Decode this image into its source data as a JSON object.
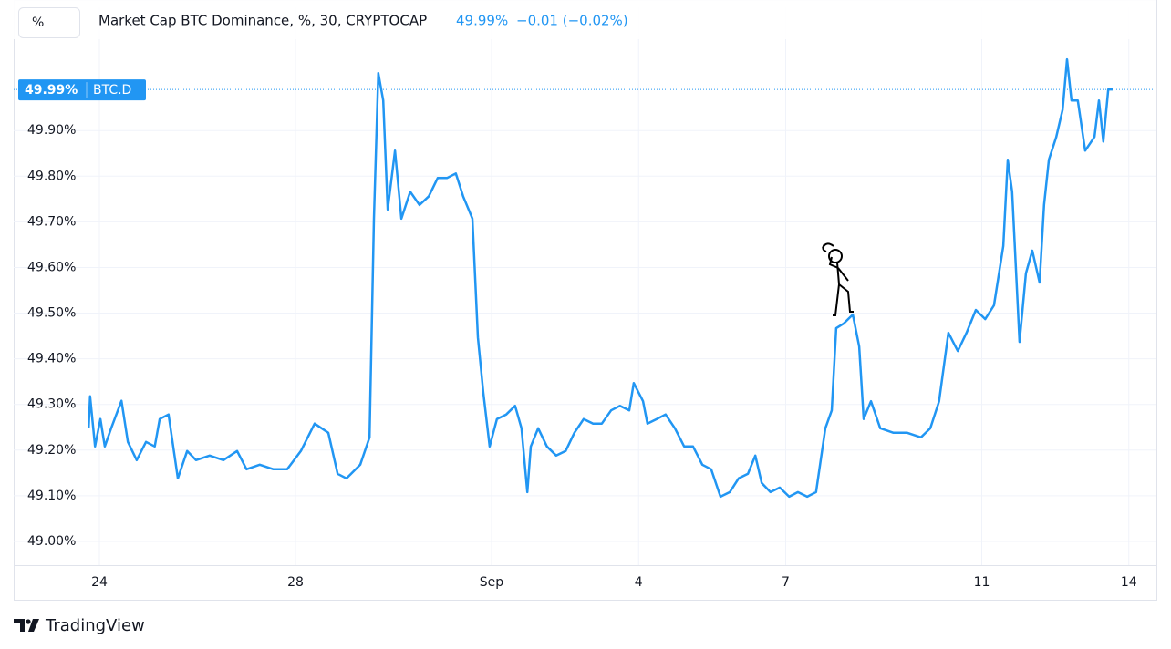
{
  "chart_data": {
    "type": "line",
    "title": "Market Cap BTC Dominance, %, 30, CRYPTOCAP",
    "unit_button": "%",
    "header_value": "49.99%",
    "header_change": "−0.01 (−0.02%)",
    "symbol": "BTC.D",
    "price_label": {
      "value": 49.99,
      "label": "49.99%"
    },
    "brand": "TradingView",
    "x": [
      23.78,
      23.81,
      23.91,
      24.02,
      24.11,
      24.24,
      24.45,
      24.58,
      24.76,
      24.95,
      25.13,
      25.23,
      25.41,
      25.6,
      25.79,
      25.97,
      26.25,
      26.53,
      26.81,
      27.0,
      27.27,
      27.55,
      27.83,
      28.11,
      28.39,
      28.67,
      28.86,
      29.04,
      29.32,
      29.51,
      29.6,
      29.69,
      29.79,
      29.88,
      30.03,
      30.16,
      30.34,
      30.53,
      30.72,
      30.9,
      31.09,
      31.27,
      31.42,
      31.61,
      31.72,
      31.83,
      31.96,
      32.11,
      32.3,
      32.48,
      32.61,
      32.73,
      32.8,
      32.95,
      33.13,
      33.32,
      33.51,
      33.69,
      33.88,
      34.07,
      34.25,
      34.44,
      34.62,
      34.81,
      34.9,
      35.09,
      35.18,
      35.37,
      35.55,
      35.74,
      35.93,
      36.11,
      36.3,
      36.48,
      36.67,
      36.86,
      37.04,
      37.23,
      37.38,
      37.51,
      37.69,
      37.88,
      38.07,
      38.25,
      38.44,
      38.62,
      38.81,
      38.94,
      39.03,
      39.18,
      39.37,
      39.5,
      39.59,
      39.74,
      39.93,
      40.2,
      40.48,
      40.76,
      40.95,
      41.13,
      41.32,
      41.51,
      41.69,
      41.88,
      42.07,
      42.25,
      42.44,
      42.53,
      42.62,
      42.77,
      42.9,
      43.03,
      43.18,
      43.27,
      43.37,
      43.52,
      43.65,
      43.74,
      43.83,
      43.96,
      44.11,
      44.3,
      44.39,
      44.48,
      44.58,
      44.67
    ],
    "series": [
      {
        "name": "BTC.D",
        "color": "#2196f3",
        "values": [
          49.248,
          49.318,
          49.208,
          49.268,
          49.208,
          49.248,
          49.308,
          49.218,
          49.178,
          49.218,
          49.208,
          49.268,
          49.278,
          49.138,
          49.198,
          49.178,
          49.188,
          49.178,
          49.198,
          49.158,
          49.168,
          49.158,
          49.158,
          49.198,
          49.258,
          49.238,
          49.148,
          49.138,
          49.168,
          49.228,
          49.707,
          50.026,
          49.966,
          49.727,
          49.856,
          49.707,
          49.766,
          49.737,
          49.756,
          49.796,
          49.796,
          49.806,
          49.756,
          49.707,
          49.447,
          49.327,
          49.208,
          49.268,
          49.278,
          49.297,
          49.248,
          49.108,
          49.208,
          49.248,
          49.208,
          49.188,
          49.198,
          49.238,
          49.268,
          49.258,
          49.258,
          49.287,
          49.297,
          49.287,
          49.347,
          49.307,
          49.258,
          49.268,
          49.278,
          49.248,
          49.208,
          49.208,
          49.168,
          49.158,
          49.098,
          49.108,
          49.138,
          49.148,
          49.188,
          49.128,
          49.108,
          49.118,
          49.098,
          49.108,
          49.098,
          49.108,
          49.248,
          49.287,
          49.467,
          49.477,
          49.497,
          49.427,
          49.268,
          49.307,
          49.248,
          49.238,
          49.238,
          49.228,
          49.248,
          49.307,
          49.457,
          49.417,
          49.457,
          49.507,
          49.487,
          49.517,
          49.647,
          49.836,
          49.766,
          49.437,
          49.587,
          49.637,
          49.567,
          49.737,
          49.836,
          49.886,
          49.946,
          50.056,
          49.966,
          49.966,
          49.856,
          49.886,
          49.966,
          49.876,
          49.99,
          49.99
        ]
      }
    ],
    "xlim": [
      22.251,
      45.563
    ],
    "xticks": [
      24,
      28,
      {
        "value": 32,
        "label": "Sep"
      },
      {
        "value": 35,
        "label": "4"
      },
      {
        "value": 38,
        "label": "7"
      },
      {
        "value": 42,
        "label": "11"
      },
      {
        "value": 45,
        "label": "14"
      }
    ],
    "ylim": [
      48.948,
      50.17
    ],
    "yticks": [
      {
        "value": 49.0,
        "label": "49.00%"
      },
      {
        "value": 49.1,
        "label": "49.10%"
      },
      {
        "value": 49.2,
        "label": "49.20%"
      },
      {
        "value": 49.3,
        "label": "49.30%"
      },
      {
        "value": 49.4,
        "label": "49.40%"
      },
      {
        "value": 49.5,
        "label": "49.50%"
      },
      {
        "value": 49.6,
        "label": "49.60%"
      },
      {
        "value": 49.7,
        "label": "49.70%"
      },
      {
        "value": 49.8,
        "label": "49.80%"
      },
      {
        "value": 49.9,
        "label": "49.90%"
      }
    ],
    "grid": true
  }
}
